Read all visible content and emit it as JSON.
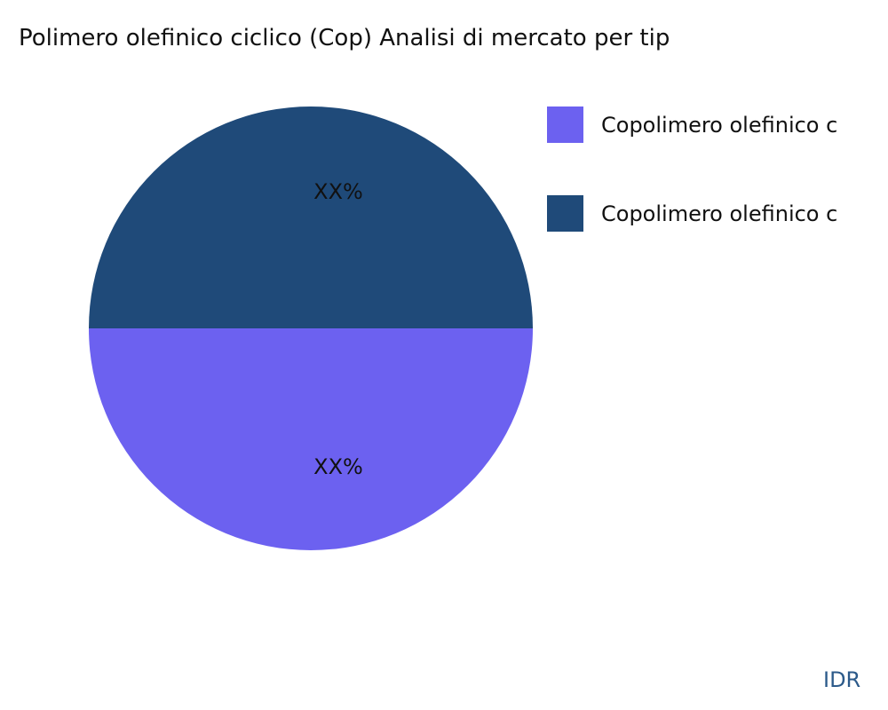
{
  "chart_data": {
    "type": "pie",
    "title": "Polimero olefinico ciclico (Cop) Analisi di mercato per tip",
    "slices": [
      {
        "name": "Copolimero olefinico c",
        "value": 50,
        "label": "XX%",
        "color": "#6c61f0"
      },
      {
        "name": "Copolimero olefinico c",
        "value": 50,
        "label": "XX%",
        "color": "#1f4a79"
      }
    ],
    "legend_position": "right"
  },
  "brand": "IDR"
}
